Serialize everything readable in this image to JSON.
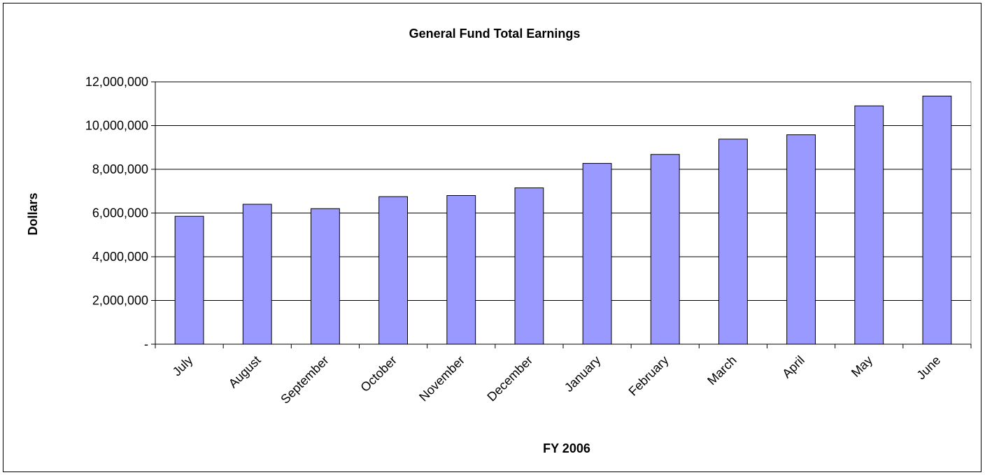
{
  "chart_data": {
    "type": "bar",
    "title": "General Fund Total Earnings",
    "xlabel": "FY 2006",
    "ylabel": "Dollars",
    "ylim": [
      0,
      12000000
    ],
    "yticks": [
      {
        "value": 0,
        "label": "-"
      },
      {
        "value": 2000000,
        "label": "2,000,000"
      },
      {
        "value": 4000000,
        "label": "4,000,000"
      },
      {
        "value": 6000000,
        "label": "6,000,000"
      },
      {
        "value": 8000000,
        "label": "8,000,000"
      },
      {
        "value": 10000000,
        "label": "10,000,000"
      },
      {
        "value": 12000000,
        "label": "12,000,000"
      }
    ],
    "categories": [
      "July",
      "August",
      "September",
      "October",
      "November",
      "December",
      "January",
      "February",
      "March",
      "April",
      "May",
      "June"
    ],
    "values": [
      5850000,
      6400000,
      6200000,
      6750000,
      6800000,
      7150000,
      8270000,
      8680000,
      9380000,
      9580000,
      10900000,
      11350000
    ],
    "grid": true,
    "bar_color": "#9999ff",
    "legend": "none"
  }
}
